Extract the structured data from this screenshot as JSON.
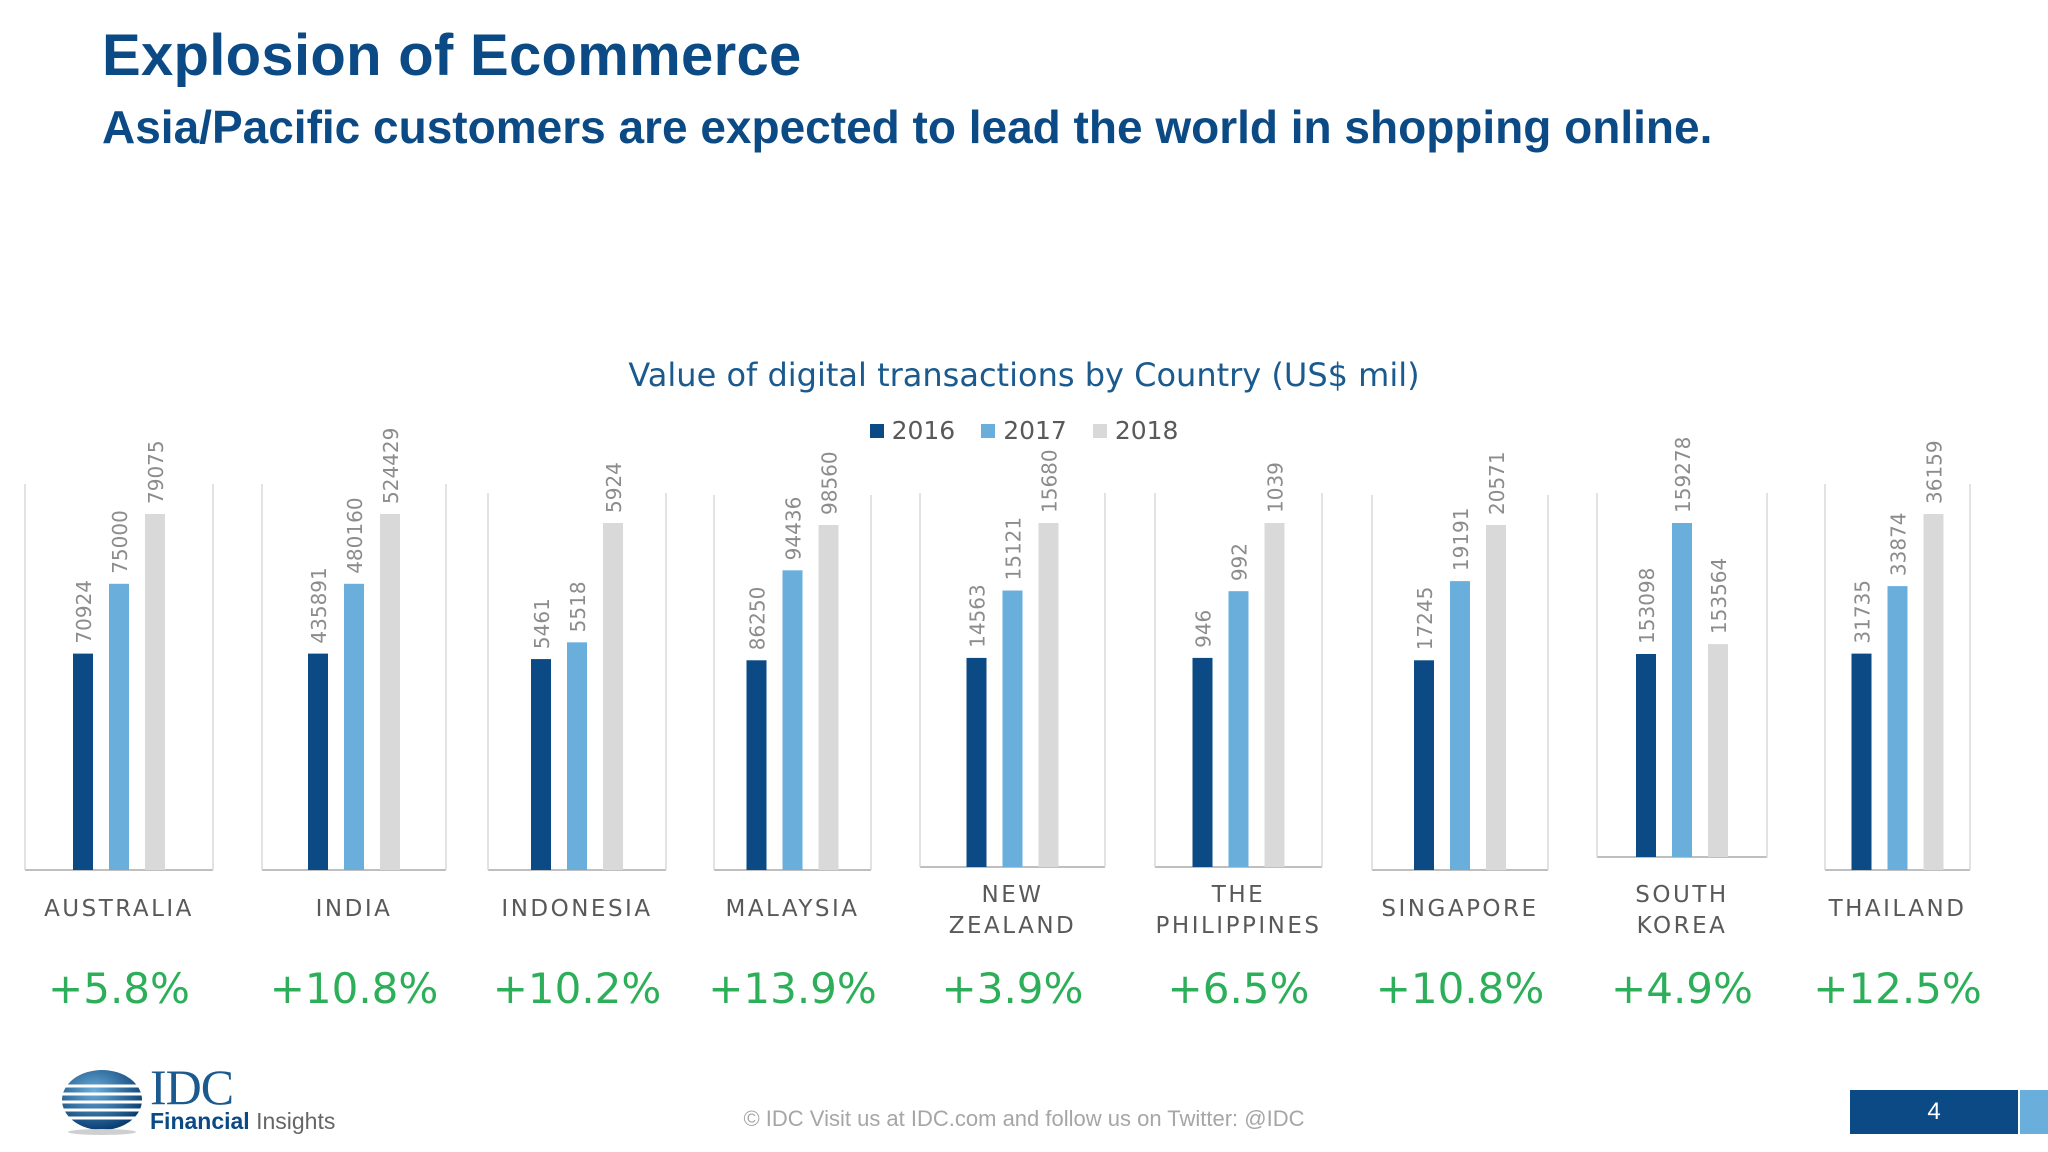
{
  "slide": {
    "title": "Explosion of Ecommerce",
    "subtitle": "Asia/Pacific customers are expected to lead the world in shopping online.",
    "footer": "© IDC   Visit us at IDC.com and follow us on Twitter: @IDC",
    "page_number": "4",
    "logo": {
      "main": "IDC",
      "sub_a": "Financial",
      "sub_b": " Insights"
    }
  },
  "colors": {
    "2016": "#0b4a84",
    "2017": "#6aaedc",
    "2018": "#d9d9d9",
    "growth": "#2daf5a",
    "title_blue": "#0b4a84"
  },
  "chart_data": {
    "type": "bar",
    "title": "Value of digital transactions by Country (US$ mil)",
    "legend_position": "top-center",
    "grid": false,
    "series_names": [
      "2016",
      "2017",
      "2018"
    ],
    "panels": [
      {
        "label": [
          "AUSTRALIA"
        ],
        "values": [
          70924,
          75000,
          79075
        ],
        "growth": "+5.8%"
      },
      {
        "label": [
          "INDIA"
        ],
        "values": [
          435891,
          480160,
          524429
        ],
        "growth": "+10.8%"
      },
      {
        "label": [
          "INDONESIA"
        ],
        "values": [
          5461,
          5518,
          5924
        ],
        "growth": "+10.2%"
      },
      {
        "label": [
          "MALAYSIA"
        ],
        "values": [
          86250,
          94436,
          98560
        ],
        "growth": "+13.9%"
      },
      {
        "label": [
          "NEW",
          "ZEALAND"
        ],
        "values": [
          14563,
          15121,
          15680
        ],
        "growth": "+3.9%"
      },
      {
        "label": [
          "THE",
          "PHILIPPINES"
        ],
        "values": [
          946,
          992,
          1039
        ],
        "growth": "+6.5%"
      },
      {
        "label": [
          "SINGAPORE"
        ],
        "values": [
          17245,
          19191,
          20571
        ],
        "growth": "+10.8%"
      },
      {
        "label": [
          "SOUTH",
          "KOREA"
        ],
        "values": [
          153098,
          159278,
          153564
        ],
        "growth": "+4.9%"
      },
      {
        "label": [
          "THAILAND"
        ],
        "values": [
          31735,
          33874,
          36159
        ],
        "growth": "+12.5%"
      }
    ]
  }
}
